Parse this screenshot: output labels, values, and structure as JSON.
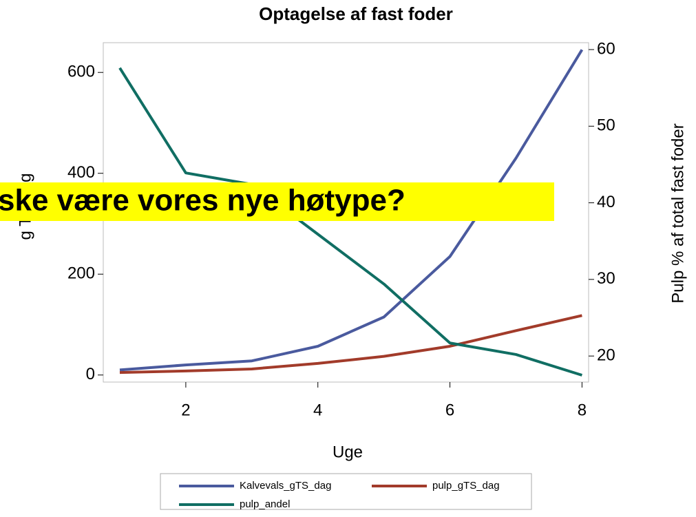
{
  "chart_data": {
    "type": "line",
    "title": "Optagelse af fast foder",
    "xlabel": "Uge",
    "ylabel": "g TS/dag",
    "y2label": "Pulp % af total fast foder",
    "x": [
      1,
      2,
      3,
      4,
      5,
      6,
      7,
      8
    ],
    "series": [
      {
        "name": "Kalvevals_gTS_dag",
        "color": "#4a5a9e",
        "values": [
          10,
          20,
          28,
          57,
          115,
          235,
          430,
          645
        ]
      },
      {
        "name": "pulp_gTS_dag",
        "color": "#a23b2a",
        "values": [
          5,
          8,
          12,
          23,
          37,
          57,
          88,
          118
        ]
      },
      {
        "name": "pulp_andel",
        "color": "#106e63",
        "axis": "y2",
        "values": [
          57.6,
          43.9,
          42.4,
          35.9,
          29.4,
          21.7,
          20.2,
          17.5
        ]
      }
    ],
    "xlim": [
      0.75,
      8.1
    ],
    "xticks": [
      2,
      4,
      6,
      8
    ],
    "ylim": [
      -14,
      659
    ],
    "yticks": [
      0,
      200,
      400,
      600
    ],
    "y2lim": [
      16.6,
      60.9
    ],
    "y2ticks": [
      20,
      30,
      40,
      50,
      60
    ],
    "legend": "bottom",
    "overlay_text": "ske være vores nye høtype?"
  }
}
